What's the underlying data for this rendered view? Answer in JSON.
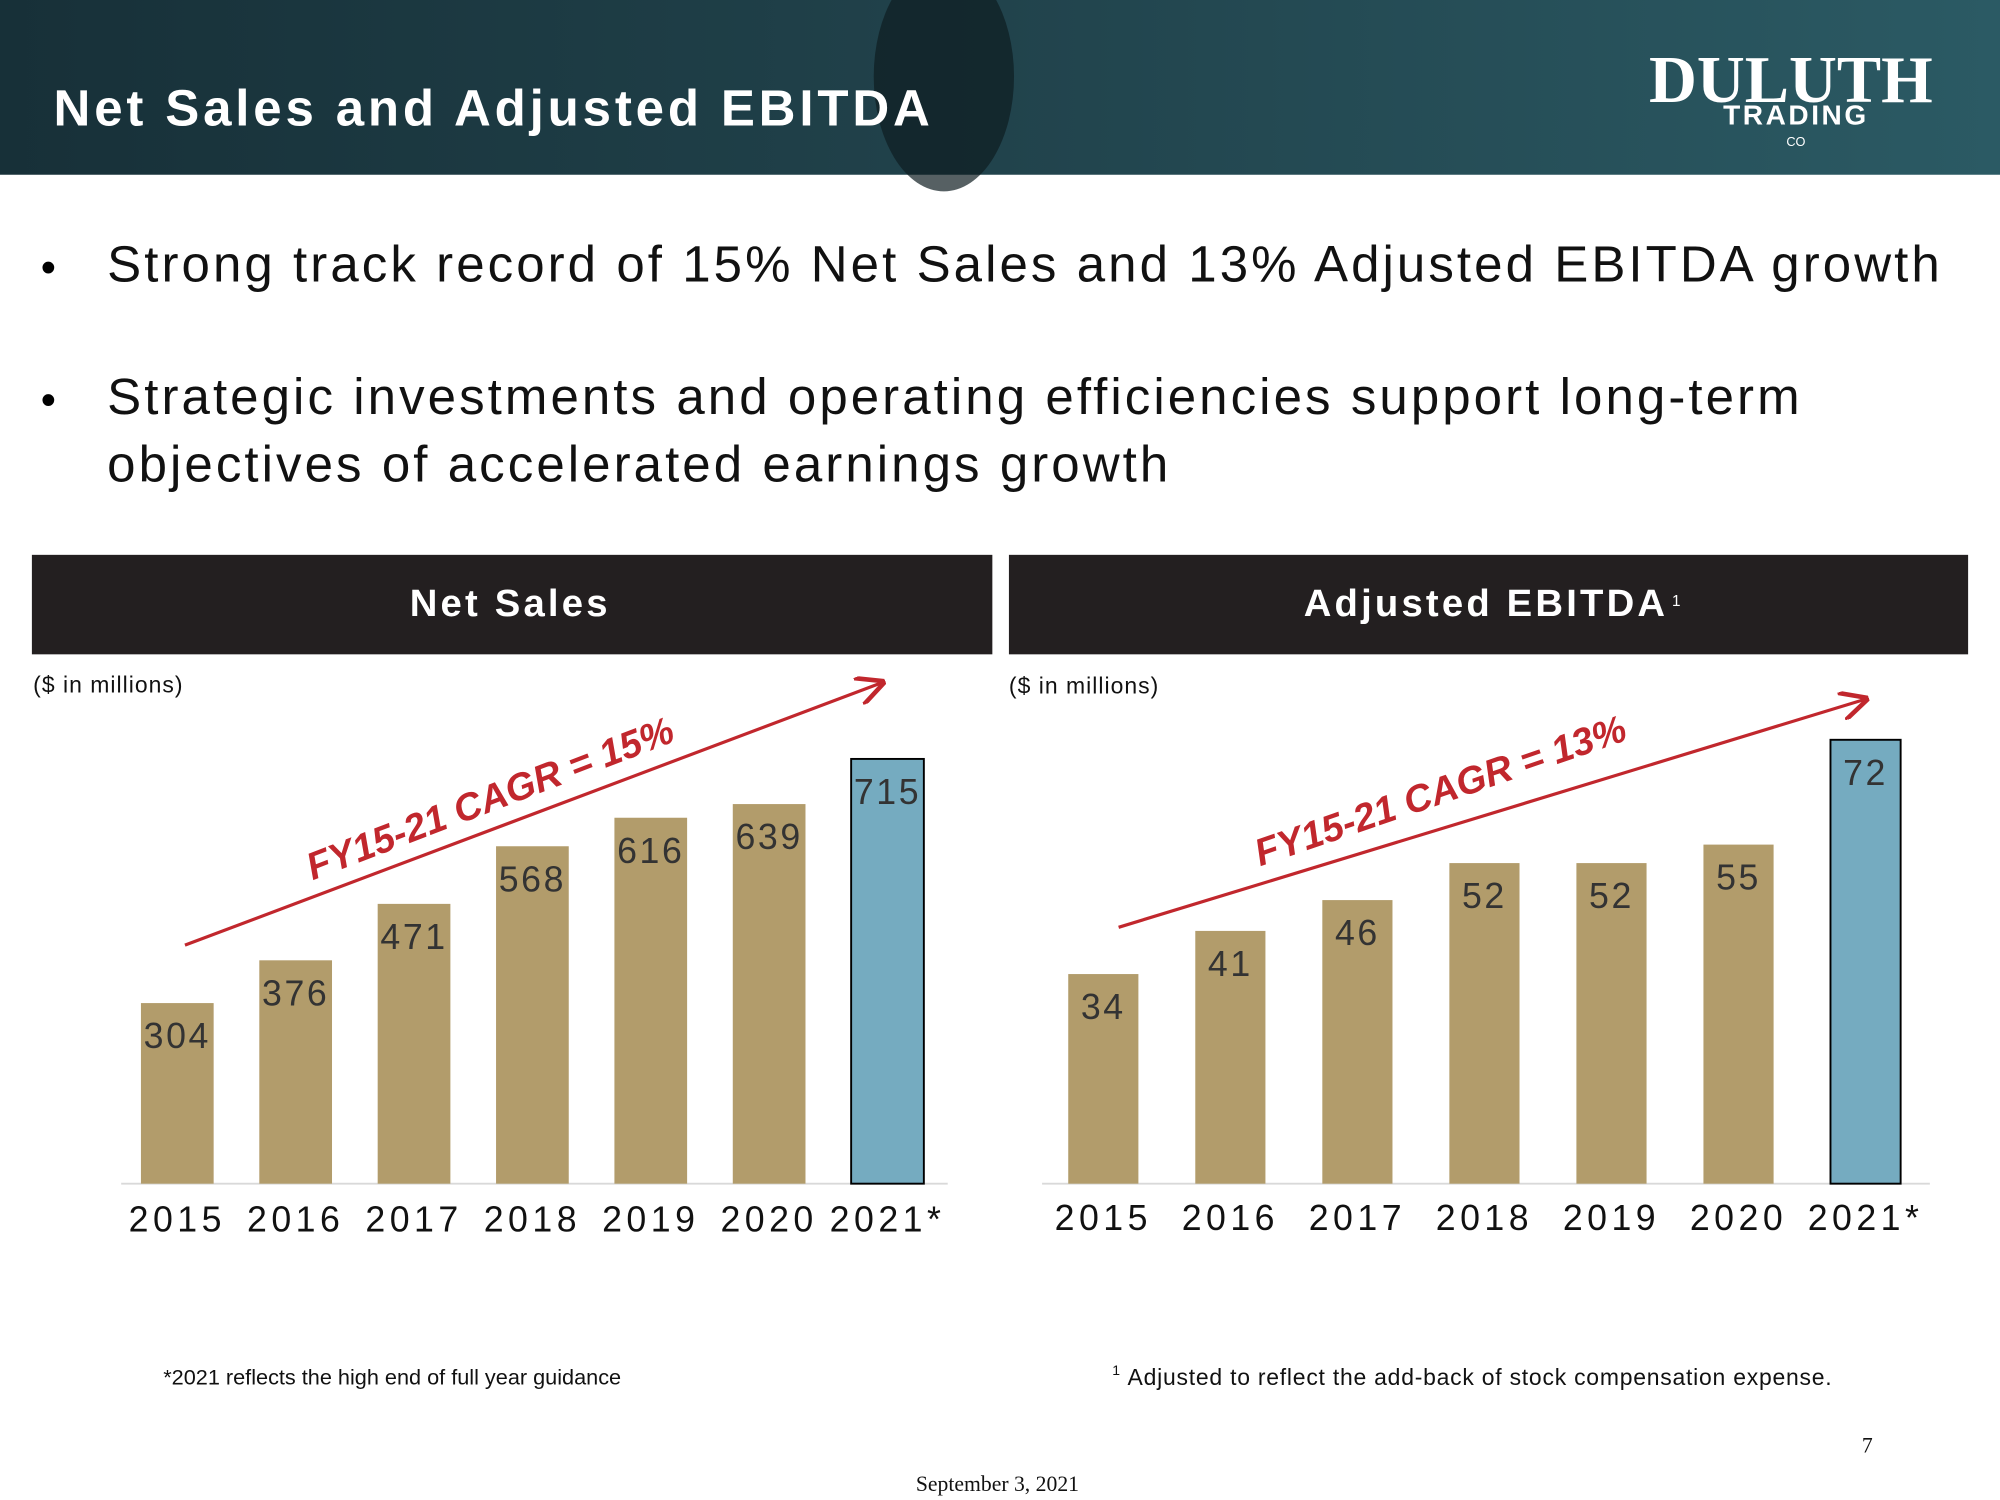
{
  "header": {
    "title": "Net Sales and Adjusted EBITDA",
    "logo": [
      "DULUTH",
      "TRADING",
      "CO"
    ]
  },
  "bullets": [
    [
      "Strong track record of 15% Net Sales and 13% Adjusted EBITDA growth"
    ],
    [
      "Strategic investments and operating efficiencies support long-term",
      "objectives of accelerated earnings growth"
    ]
  ],
  "chart_data": [
    {
      "type": "bar",
      "title": "Net Sales",
      "unit_note": "($ in millions)",
      "annotation": "FY15-21 CAGR = 15%",
      "categories": [
        "2015",
        "2016",
        "2017",
        "2018",
        "2019",
        "2020",
        "2021*"
      ],
      "values": [
        304,
        376,
        471,
        568,
        616,
        639,
        715
      ],
      "colors": [
        "#b29c6b",
        "#b29c6b",
        "#b29c6b",
        "#b29c6b",
        "#b29c6b",
        "#b29c6b",
        "#75abc0"
      ]
    },
    {
      "type": "bar",
      "title": "Adjusted EBITDA",
      "title_note": "1",
      "unit_note": "($ in millions)",
      "annotation": "FY15-21 CAGR = 13%",
      "categories": [
        "2015",
        "2016",
        "2017",
        "2018",
        "2019",
        "2020",
        "2021*"
      ],
      "values": [
        34,
        41,
        46,
        52,
        52,
        55,
        72
      ],
      "colors": [
        "#b29c6b",
        "#b29c6b",
        "#b29c6b",
        "#b29c6b",
        "#b29c6b",
        "#b29c6b",
        "#75abc0"
      ]
    }
  ],
  "footnotes": {
    "left": "*2021 reflects the high end of full year guidance",
    "right_mark": "1",
    "right": "Adjusted to reflect the add-back of stock compensation expense."
  },
  "date": "September 3, 2021",
  "page_number": "7"
}
